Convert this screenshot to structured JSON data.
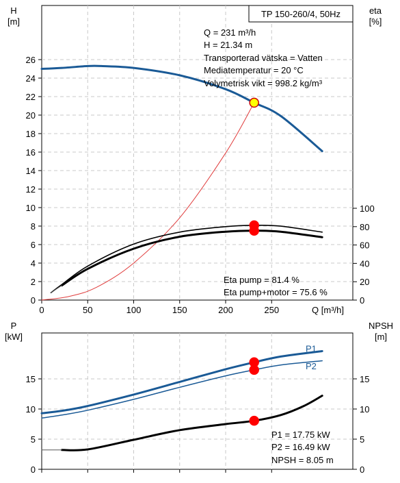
{
  "chart_data": [
    {
      "type": "line",
      "title": "TP 150-260/4, 50Hz",
      "xlabel": "Q [m³/h]",
      "ylabel_left_symbol": "H",
      "ylabel_left_unit": "[m]",
      "ylabel_right_symbol": "eta",
      "ylabel_right_unit": "[%]",
      "xlim": [
        0,
        290
      ],
      "ylim_left": [
        0,
        29
      ],
      "ylim_right": [
        0,
        100
      ],
      "x_ticks": [
        0,
        50,
        100,
        150,
        200,
        250
      ],
      "y_left_ticks": [
        0,
        2,
        4,
        6,
        8,
        10,
        12,
        14,
        16,
        18,
        20,
        22,
        24,
        26
      ],
      "y_right_ticks": [
        0,
        20,
        40,
        60,
        80,
        100
      ],
      "grid": true,
      "info_lines": [
        "Q = 231 m³/h",
        "H = 21.34 m",
        "Transporterad vätska = Vatten",
        "Mediatemperatur = 20 °C",
        "Volymetrisk vikt = 998.2 kg/m³"
      ],
      "eta_lines": [
        "Eta pump = 81.4 %",
        "Eta pump+motor = 75.6 %"
      ],
      "operating_point": {
        "x": 231,
        "y": 21.34
      },
      "series": [
        {
          "key": "H",
          "axis": "left",
          "color": "#1a5a96",
          "width": 3,
          "x": [
            0,
            22,
            50,
            65,
            100,
            150,
            200,
            231,
            260,
            305
          ],
          "y": [
            25.0,
            25.1,
            25.3,
            25.3,
            25.1,
            24.3,
            22.8,
            21.34,
            19.9,
            16.1
          ]
        },
        {
          "key": "H-thin-start",
          "axis": "left",
          "color": "#1a5a96",
          "width": 1,
          "x": [
            0,
            22
          ],
          "y": [
            25.0,
            25.1
          ]
        },
        {
          "key": "system-curve",
          "axis": "left",
          "color": "#e03c3c",
          "width": 1,
          "x": [
            0,
            30,
            60,
            100,
            150,
            200,
            231
          ],
          "y": [
            0.0,
            0.4,
            1.4,
            4.0,
            8.9,
            15.9,
            21.34
          ]
        },
        {
          "key": "eta-pump",
          "axis": "right",
          "color": "#000000",
          "width": 1.6,
          "x": [
            10,
            22,
            50,
            100,
            150,
            200,
            231,
            260,
            305
          ],
          "y": [
            8,
            17,
            37,
            61,
            74,
            80,
            81.4,
            80.5,
            74
          ]
        },
        {
          "key": "eta-pump-motor",
          "axis": "right",
          "color": "#000000",
          "width": 3,
          "x": [
            22,
            50,
            100,
            150,
            200,
            231,
            260,
            305
          ],
          "y": [
            16,
            34,
            56,
            69,
            74.5,
            75.6,
            74.5,
            68.5
          ]
        },
        {
          "key": "eta-thin-start",
          "axis": "right",
          "color": "#555555",
          "width": 1,
          "x": [
            10,
            22
          ],
          "y": [
            8,
            16
          ]
        }
      ],
      "markers": [
        {
          "axis": "left",
          "x": 231,
          "y": 21.34,
          "fill": "#ffff00",
          "stroke": "#cc0000"
        },
        {
          "axis": "right",
          "x": 231,
          "y": 81.4,
          "fill": "#ff0000",
          "stroke": "#ff0000"
        },
        {
          "axis": "right",
          "x": 231,
          "y": 75.6,
          "fill": "#ff0000",
          "stroke": "#ff0000"
        }
      ]
    },
    {
      "type": "line",
      "xlabel": "",
      "ylabel_left_symbol": "P",
      "ylabel_left_unit": "[kW]",
      "ylabel_right_symbol": "NPSH",
      "ylabel_right_unit": "[m]",
      "xlim": [
        0,
        290
      ],
      "ylim_left": [
        0,
        20
      ],
      "ylim_right": [
        0,
        20
      ],
      "x_ticks": [
        0,
        50,
        100,
        150,
        200,
        250
      ],
      "y_left_ticks": [
        0,
        5,
        10,
        15
      ],
      "y_right_ticks": [
        0,
        5,
        10,
        15
      ],
      "grid": true,
      "info_lines": [
        "P1 = 17.75 kW",
        "P2 = 16.49 kW",
        "NPSH = 8.05 m"
      ],
      "series_labels": [
        {
          "name": "P1",
          "color": "#1a5a96",
          "x": 287,
          "y": 19.5
        },
        {
          "name": "P2",
          "color": "#1a5a96",
          "x": 287,
          "y": 16.6
        }
      ],
      "series": [
        {
          "key": "P1",
          "axis": "left",
          "color": "#1a5a96",
          "width": 3,
          "x": [
            0,
            22,
            50,
            100,
            150,
            200,
            231,
            260,
            305
          ],
          "y": [
            9.3,
            9.7,
            10.5,
            12.4,
            14.5,
            16.6,
            17.75,
            18.7,
            19.6
          ]
        },
        {
          "key": "P2",
          "axis": "left",
          "color": "#1a5a96",
          "width": 1.5,
          "x": [
            0,
            22,
            50,
            100,
            150,
            200,
            231,
            260,
            305
          ],
          "y": [
            8.5,
            9.0,
            9.8,
            11.6,
            13.6,
            15.5,
            16.49,
            17.3,
            18.0
          ]
        },
        {
          "key": "NPSH",
          "axis": "right",
          "color": "#000000",
          "width": 3,
          "x": [
            22,
            50,
            100,
            150,
            200,
            231,
            260,
            285,
            305
          ],
          "y": [
            3.2,
            3.3,
            4.9,
            6.5,
            7.5,
            8.05,
            9.0,
            10.5,
            12.2
          ]
        },
        {
          "key": "NPSH-thin-start",
          "axis": "right",
          "color": "#555555",
          "width": 1,
          "x": [
            0,
            22
          ],
          "y": [
            3.2,
            3.2
          ]
        }
      ],
      "markers": [
        {
          "axis": "left",
          "x": 231,
          "y": 17.75,
          "fill": "#ff0000",
          "stroke": "#ff0000"
        },
        {
          "axis": "left",
          "x": 231,
          "y": 16.49,
          "fill": "#ff0000",
          "stroke": "#ff0000"
        },
        {
          "axis": "right",
          "x": 231,
          "y": 8.05,
          "fill": "#ff0000",
          "stroke": "#ff0000"
        }
      ]
    }
  ]
}
